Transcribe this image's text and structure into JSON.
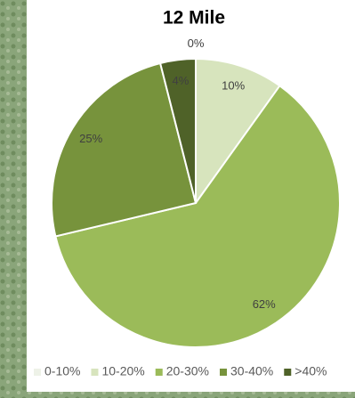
{
  "chart_data": {
    "type": "pie",
    "title": "12 Mile",
    "categories": [
      "0-10%",
      "10-20%",
      "20-30%",
      "30-40%",
      ">40%"
    ],
    "values": [
      0,
      10,
      62,
      25,
      4
    ],
    "value_labels": [
      "0%",
      "10%",
      "62%",
      "25%",
      "4%"
    ],
    "colors": [
      "#eef2e8",
      "#d7e4bd",
      "#9bbb59",
      "#77933c",
      "#4f6228"
    ],
    "legend": "bottom"
  }
}
